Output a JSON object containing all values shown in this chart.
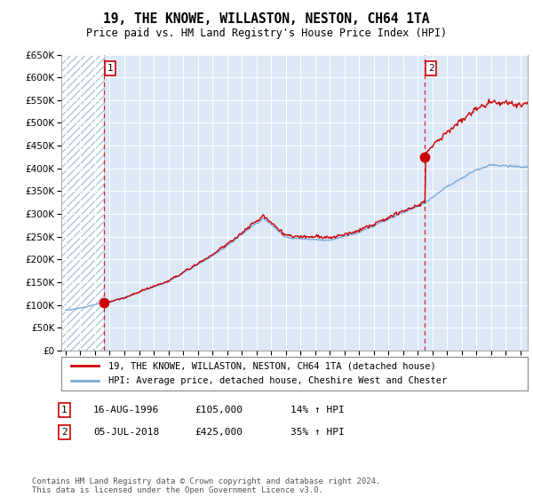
{
  "title": "19, THE KNOWE, WILLASTON, NESTON, CH64 1TA",
  "subtitle": "Price paid vs. HM Land Registry's House Price Index (HPI)",
  "legend_line1": "19, THE KNOWE, WILLASTON, NESTON, CH64 1TA (detached house)",
  "legend_line2": "HPI: Average price, detached house, Cheshire West and Chester",
  "annotation1_date": "16-AUG-1996",
  "annotation1_price": "£105,000",
  "annotation1_hpi": "14% ↑ HPI",
  "annotation2_date": "05-JUL-2018",
  "annotation2_price": "£425,000",
  "annotation2_hpi": "35% ↑ HPI",
  "footer": "Contains HM Land Registry data © Crown copyright and database right 2024.\nThis data is licensed under the Open Government Licence v3.0.",
  "ylim": [
    0,
    650000
  ],
  "yticks": [
    0,
    50000,
    100000,
    150000,
    200000,
    250000,
    300000,
    350000,
    400000,
    450000,
    500000,
    550000,
    600000,
    650000
  ],
  "plot_bg": "#dde8f7",
  "hatch_color": "#b0c4de",
  "red_color": "#cc0000",
  "blue_color": "#7aabda",
  "transaction1_x": 1996.625,
  "transaction1_y": 105000,
  "transaction2_x": 2018.5,
  "transaction2_y": 425000,
  "xlim_left": 1993.7,
  "xlim_right": 2025.5
}
